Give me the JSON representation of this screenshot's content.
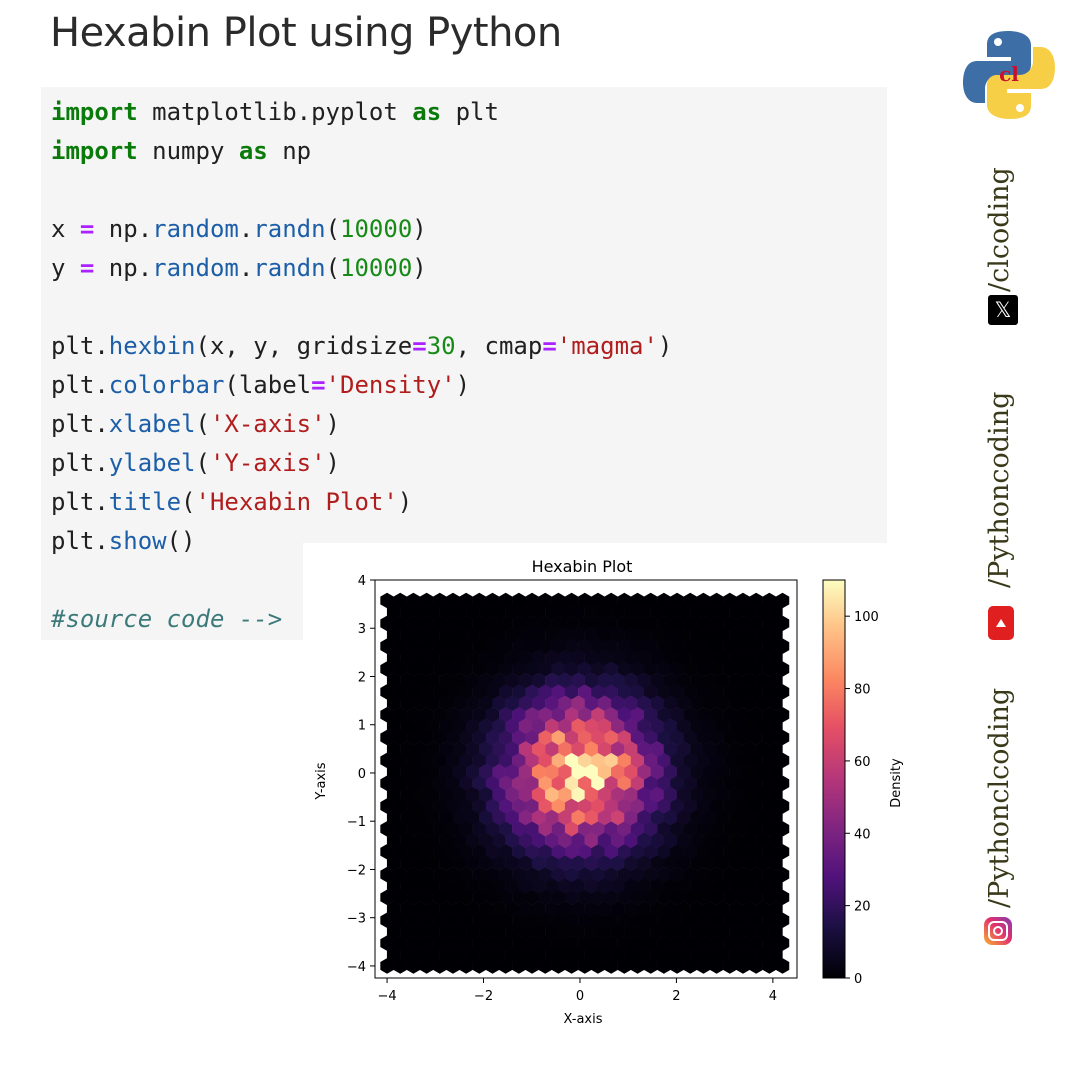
{
  "page_title": "Hexabin Plot using Python",
  "code_lines": [
    [
      {
        "c": "kw",
        "t": "import"
      },
      {
        "c": "",
        "t": " matplotlib.pyplot "
      },
      {
        "c": "kw",
        "t": "as"
      },
      {
        "c": "",
        "t": " plt"
      }
    ],
    [
      {
        "c": "kw",
        "t": "import"
      },
      {
        "c": "",
        "t": " numpy "
      },
      {
        "c": "kw",
        "t": "as"
      },
      {
        "c": "",
        "t": " np"
      }
    ],
    [],
    [
      {
        "c": "",
        "t": "x "
      },
      {
        "c": "op",
        "t": "="
      },
      {
        "c": "",
        "t": " np."
      },
      {
        "c": "fn",
        "t": "random"
      },
      {
        "c": "",
        "t": "."
      },
      {
        "c": "fn",
        "t": "randn"
      },
      {
        "c": "",
        "t": "("
      },
      {
        "c": "num",
        "t": "10000"
      },
      {
        "c": "",
        "t": ")"
      }
    ],
    [
      {
        "c": "",
        "t": "y "
      },
      {
        "c": "op",
        "t": "="
      },
      {
        "c": "",
        "t": " np."
      },
      {
        "c": "fn",
        "t": "random"
      },
      {
        "c": "",
        "t": "."
      },
      {
        "c": "fn",
        "t": "randn"
      },
      {
        "c": "",
        "t": "("
      },
      {
        "c": "num",
        "t": "10000"
      },
      {
        "c": "",
        "t": ")"
      }
    ],
    [],
    [
      {
        "c": "",
        "t": "plt."
      },
      {
        "c": "fn",
        "t": "hexbin"
      },
      {
        "c": "",
        "t": "(x, y, gridsize"
      },
      {
        "c": "op",
        "t": "="
      },
      {
        "c": "num",
        "t": "30"
      },
      {
        "c": "",
        "t": ", cmap"
      },
      {
        "c": "op",
        "t": "="
      },
      {
        "c": "str",
        "t": "'magma'"
      },
      {
        "c": "",
        "t": ")"
      }
    ],
    [
      {
        "c": "",
        "t": "plt."
      },
      {
        "c": "fn",
        "t": "colorbar"
      },
      {
        "c": "",
        "t": "(label"
      },
      {
        "c": "op",
        "t": "="
      },
      {
        "c": "str",
        "t": "'Density'"
      },
      {
        "c": "",
        "t": ")"
      }
    ],
    [
      {
        "c": "",
        "t": "plt."
      },
      {
        "c": "fn",
        "t": "xlabel"
      },
      {
        "c": "",
        "t": "("
      },
      {
        "c": "str",
        "t": "'X-axis'"
      },
      {
        "c": "",
        "t": ")"
      }
    ],
    [
      {
        "c": "",
        "t": "plt."
      },
      {
        "c": "fn",
        "t": "ylabel"
      },
      {
        "c": "",
        "t": "("
      },
      {
        "c": "str",
        "t": "'Y-axis'"
      },
      {
        "c": "",
        "t": ")"
      }
    ],
    [
      {
        "c": "",
        "t": "plt."
      },
      {
        "c": "fn",
        "t": "title"
      },
      {
        "c": "",
        "t": "("
      },
      {
        "c": "str",
        "t": "'Hexabin Plot'"
      },
      {
        "c": "",
        "t": ")"
      }
    ],
    [
      {
        "c": "",
        "t": "plt."
      },
      {
        "c": "fn",
        "t": "show"
      },
      {
        "c": "",
        "t": "()"
      }
    ],
    [],
    [
      {
        "c": "cm",
        "t": "#source code -->"
      }
    ]
  ],
  "chart_data": {
    "type": "heatmap",
    "subtype": "hexbin",
    "title": "Hexabin Plot",
    "xlabel": "X-axis",
    "ylabel": "Y-axis",
    "xlim": [
      -4.25,
      4.5
    ],
    "ylim": [
      -4.25,
      4.0
    ],
    "hex_extent": {
      "x": [
        -4.0,
        4.2
      ],
      "y": [
        -4.0,
        3.75
      ]
    },
    "xticks": [
      -4,
      -2,
      0,
      2,
      4
    ],
    "yticks": [
      -4,
      -3,
      -2,
      -1,
      0,
      1,
      2,
      3,
      4
    ],
    "gridsize": 30,
    "cmap": "magma",
    "colorbar": {
      "label": "Density",
      "ticks": [
        0,
        20,
        40,
        60,
        80,
        100
      ],
      "range": [
        0,
        110
      ]
    },
    "peak_density": 110,
    "distribution": {
      "mean_x": 0,
      "mean_y": 0,
      "std_x": 1,
      "std_y": 1,
      "n": 10000
    },
    "grid": false
  },
  "social": {
    "handle_x": "/clcoding",
    "handle_youtube": "/Pythoncoding",
    "handle_instagram": "/Pythonclcoding"
  },
  "icons": {
    "logo": "python-logo-icon",
    "x": "x-twitter-icon",
    "youtube": "youtube-icon",
    "instagram": "instagram-icon"
  }
}
